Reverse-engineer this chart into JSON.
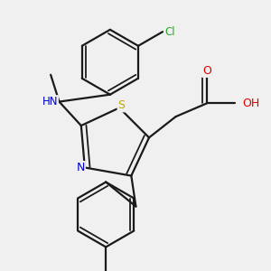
{
  "bg_color": "#f0f0f0",
  "bond_color": "#1a1a1a",
  "bond_width": 1.6,
  "colors": {
    "N": "#0000cc",
    "S": "#bbaa00",
    "O": "#dd0000",
    "Cl": "#22aa22",
    "H": "#888888",
    "C": "#1a1a1a"
  },
  "fig_width": 3.0,
  "fig_height": 3.0,
  "dpi": 100
}
